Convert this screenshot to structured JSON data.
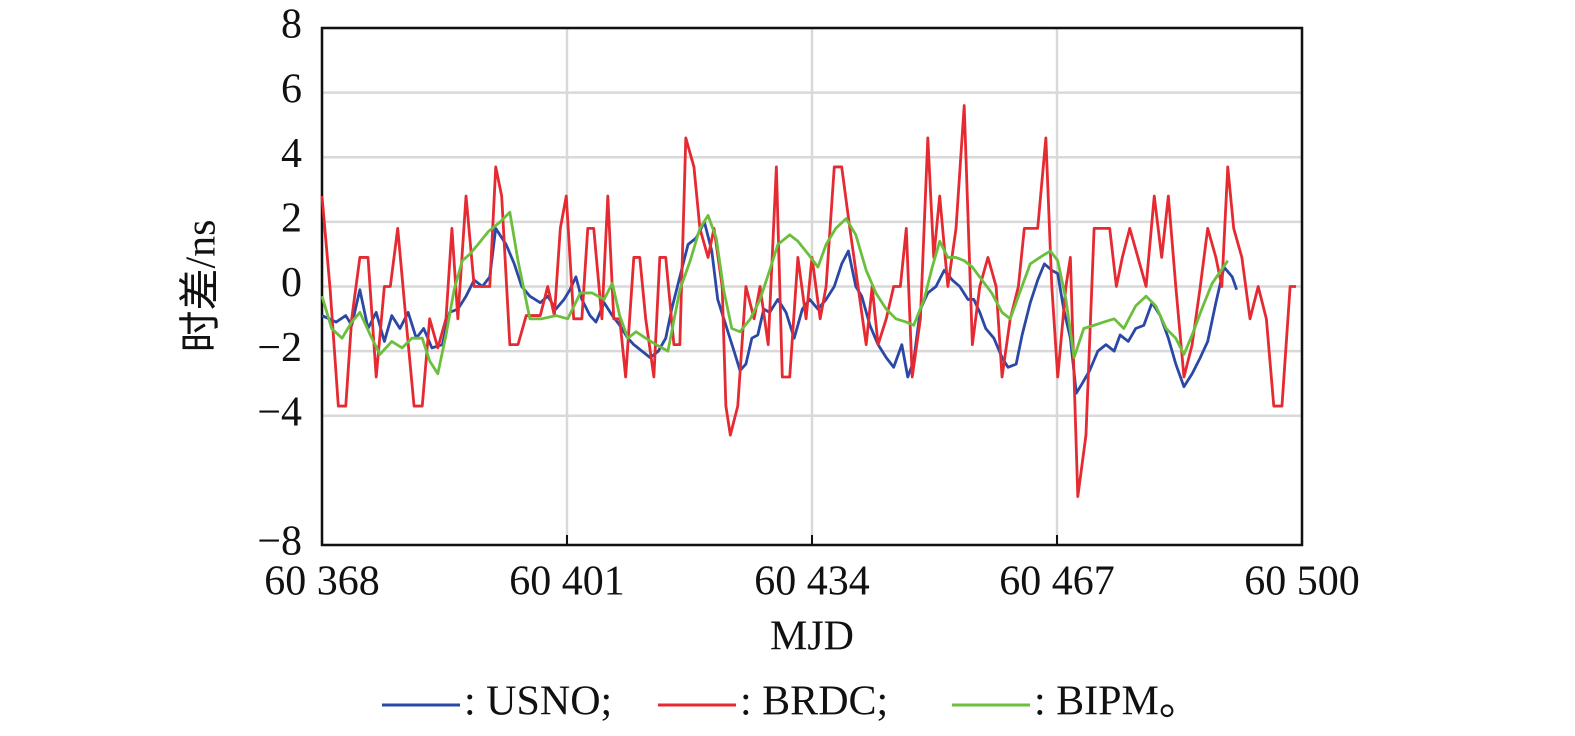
{
  "chart_data": {
    "type": "line",
    "x_label": "MJD",
    "y_label": "时差/ns",
    "xlim": [
      60368,
      60500
    ],
    "ylim": [
      -8,
      8
    ],
    "xticks": [
      {
        "value": 60368,
        "label": "60 368"
      },
      {
        "value": 60401,
        "label": "60 401"
      },
      {
        "value": 60434,
        "label": "60 434"
      },
      {
        "value": 60467,
        "label": "60 467"
      },
      {
        "value": 60500,
        "label": "60 500"
      }
    ],
    "yticks": [
      8,
      6,
      4,
      2,
      0,
      {
        "value": -2,
        "label": "−2"
      },
      {
        "value": -4,
        "label": "−4"
      },
      {
        "value": -8,
        "label": "−8"
      }
    ],
    "grid": true,
    "series": [
      {
        "name": ": USNO;",
        "color": "#2c48a6",
        "x": [
          60368,
          60369.9,
          60371.2,
          60372,
          60373.1,
          60374.2,
          60375.3,
          60376.4,
          60377.4,
          60378.5,
          60379.6,
          60380.7,
          60381.7,
          60382.8,
          60384.2,
          60385.2,
          60386.3,
          60387.4,
          60388.5,
          60389.6,
          60390.6,
          60391.4,
          60392.8,
          60393.9,
          60394.9,
          60396,
          60397.4,
          60398.4,
          60399.5,
          60400.6,
          60401.4,
          60402.2,
          60403,
          60404.1,
          60404.9,
          60406,
          60407.1,
          60408.1,
          60409.2,
          60410,
          60411.1,
          60412.2,
          60413.3,
          60414.3,
          60415.1,
          60416.2,
          60417.3,
          60418.4,
          60419.5,
          60420.5,
          60421.3,
          60422.4,
          60423.5,
          60424.3,
          60425.1,
          60425.9,
          60426.7,
          60427.5,
          60428.3,
          60429.4,
          60430.5,
          60431.6,
          60432.7,
          60433.7,
          60434.8,
          60435.9,
          60437,
          60438,
          60438.9,
          60439.9,
          60440.7,
          60441.8,
          60442.9,
          60444,
          60445,
          60446.1,
          60446.9,
          60447.7,
          60448.6,
          60449.6,
          60450.7,
          60451.8,
          60452.9,
          60453.9,
          60455,
          60455.8,
          60456.6,
          60457.4,
          60458.5,
          60459.6,
          60460.4,
          60461.5,
          60462.3,
          60463.4,
          60464.4,
          60465.3,
          60466.3,
          60467.1,
          60467.9,
          60468.8,
          60469.6,
          60470.4,
          60471.4,
          60472.5,
          60473.6,
          60474.7,
          60475.5,
          60476.6,
          60477.6,
          60478.7,
          60479.8,
          60480.9,
          60482,
          60483,
          60484.1,
          60485.2,
          60486.3,
          60487.3,
          60488.4,
          60489.5,
          60490.6,
          60491.2
        ],
        "values": [
          -0.9,
          -1.1,
          -0.9,
          -1.2,
          -0.1,
          -1.3,
          -0.8,
          -1.7,
          -0.9,
          -1.3,
          -0.8,
          -1.6,
          -1.3,
          -1.9,
          -1.8,
          -0.8,
          -0.7,
          -0.3,
          0.2,
          0.0,
          0.3,
          1.8,
          1.3,
          0.7,
          0.0,
          -0.3,
          -0.5,
          -0.3,
          -0.7,
          -0.4,
          -0.1,
          0.3,
          -0.4,
          -0.9,
          -1.1,
          -0.5,
          -0.9,
          -1.2,
          -1.6,
          -1.8,
          -2.0,
          -2.2,
          -2.0,
          -1.6,
          -0.7,
          0.3,
          1.3,
          1.5,
          2.0,
          1.1,
          -0.4,
          -1.2,
          -2.0,
          -2.6,
          -2.4,
          -1.6,
          -1.5,
          -0.7,
          -0.8,
          -0.4,
          -0.8,
          -1.6,
          -0.7,
          -0.4,
          -0.7,
          -0.4,
          0.0,
          0.7,
          1.1,
          0.0,
          -0.3,
          -1.2,
          -1.8,
          -2.2,
          -2.5,
          -1.8,
          -2.8,
          -2.3,
          -0.7,
          -0.2,
          0.0,
          0.5,
          0.2,
          0.0,
          -0.4,
          -0.4,
          -0.8,
          -1.3,
          -1.6,
          -2.2,
          -2.5,
          -2.4,
          -1.5,
          -0.5,
          0.2,
          0.7,
          0.5,
          0.4,
          -0.7,
          -1.6,
          -3.3,
          -3.0,
          -2.6,
          -2.0,
          -1.8,
          -2.0,
          -1.5,
          -1.7,
          -1.3,
          -1.2,
          -0.5,
          -0.9,
          -1.6,
          -2.4,
          -3.1,
          -2.7,
          -2.2,
          -1.7,
          -0.5,
          0.6,
          0.3,
          -0.1
        ]
      },
      {
        "name": ": BRDC;",
        "color": "#e52a32",
        "x": [
          60368,
          60369.1,
          60370.2,
          60371.2,
          60372,
          60373.1,
          60374.2,
          60375.3,
          60376.4,
          60377.2,
          60378.2,
          60379.3,
          60380.4,
          60381.5,
          60382.5,
          60383.6,
          60384.7,
          60385.5,
          60386.3,
          60387.4,
          60388.5,
          60389.6,
          60390.6,
          60391.4,
          60392.2,
          60393.3,
          60394.4,
          60395.5,
          60396.6,
          60397.4,
          60398.4,
          60399.3,
          60400.1,
          60400.9,
          60401.9,
          60403,
          60403.8,
          60404.6,
          60405.7,
          60406.5,
          60407.3,
          60408.1,
          60408.9,
          60410,
          60410.8,
          60411.6,
          60412.7,
          60413.5,
          60414.3,
          60415.4,
          60416.2,
          60417,
          60418.1,
          60418.9,
          60420,
          60420.8,
          60421.9,
          60422.4,
          60423,
          60424,
          60425.1,
          60426.2,
          60427,
          60428.1,
          60429.2,
          60430,
          60431,
          60432.1,
          60433.2,
          60434,
          60435.1,
          60435.9,
          60437,
          60438,
          60439.1,
          60440.2,
          60441.3,
          60442.1,
          60442.9,
          60444,
          60445,
          60445.9,
          60446.7,
          60447.5,
          60448.6,
          60449.6,
          60450.4,
          60451.2,
          60452.3,
          60453.4,
          60454.5,
          60455.6,
          60456.6,
          60457.7,
          60458.8,
          60459.6,
          60460.7,
          60461.8,
          60462.6,
          60463.4,
          60464.4,
          60465.5,
          60466.3,
          60467.1,
          60468.2,
          60468.8,
          60469.8,
          60470.9,
          60472,
          60473.1,
          60474.1,
          60475,
          60475.8,
          60476.8,
          60477.9,
          60479,
          60480.1,
          60481.1,
          60482,
          60483,
          60484.1,
          60485.2,
          60486.3,
          60487.3,
          60488.4,
          60489.2,
          60490,
          60490.8,
          60491.9,
          60493,
          60494.1,
          60495.2,
          60496.2,
          60497.3,
          60498.4,
          60499.2
        ],
        "values": [
          2.8,
          -0.1,
          -3.7,
          -3.7,
          -1.0,
          0.9,
          0.9,
          -2.8,
          0,
          0,
          1.8,
          -1.0,
          -3.7,
          -3.7,
          -1.0,
          -1.9,
          -1.0,
          1.8,
          -1.0,
          2.8,
          0,
          0,
          0,
          3.7,
          2.8,
          -1.8,
          -1.8,
          -0.9,
          -0.9,
          -0.9,
          0,
          -0.9,
          1.8,
          2.8,
          -1.0,
          -1.0,
          1.8,
          1.8,
          -1.0,
          2.8,
          -1.0,
          -1.0,
          -2.8,
          0.9,
          0.9,
          -1.0,
          -2.8,
          0.9,
          0.9,
          -1.8,
          -1.8,
          4.6,
          3.7,
          1.8,
          0.9,
          1.8,
          0,
          -3.7,
          -4.6,
          -3.7,
          0,
          -1.0,
          0,
          -1.8,
          3.7,
          -2.8,
          -2.8,
          0.9,
          -1.0,
          0.9,
          -1.0,
          0,
          3.7,
          3.7,
          1.8,
          0,
          -1.8,
          0,
          -1.8,
          -1.0,
          0,
          0,
          1.8,
          -2.8,
          -1.0,
          4.6,
          0.9,
          2.8,
          0,
          1.8,
          5.6,
          -1.8,
          0,
          0.9,
          0,
          -2.8,
          -1.0,
          0,
          1.8,
          1.8,
          1.8,
          4.6,
          0,
          -2.8,
          0,
          0.9,
          -6.5,
          -4.6,
          1.8,
          1.8,
          1.8,
          0,
          0.9,
          1.8,
          0.9,
          0,
          2.8,
          0.9,
          2.8,
          0,
          -2.8,
          -1.8,
          0,
          1.8,
          0.9,
          0,
          3.7,
          1.8,
          0.9,
          -1.0,
          0,
          -1.0,
          -3.7,
          -3.7,
          0,
          0
        ]
      },
      {
        "name": ": BIPM。",
        "color": "#6cbf3c",
        "x": [
          60368,
          60369.3,
          60370.7,
          60372,
          60373.1,
          60374.5,
          60375.8,
          60377.4,
          60378.8,
          60380.1,
          60381.5,
          60382.5,
          60383.6,
          60384.7,
          60385.8,
          60386.9,
          60387.9,
          60389,
          60390.4,
          60392,
          60393.3,
          60394.4,
          60396,
          60397.6,
          60399.5,
          60401.1,
          60402.8,
          60404.4,
          60406,
          60407.1,
          60408.1,
          60409.2,
          60410.3,
          60411.6,
          60413,
          60414.6,
          60416.2,
          60417.6,
          60418.9,
          60420,
          60421.1,
          60422.1,
          60423.2,
          60424.3,
          60425.7,
          60427,
          60428.3,
          60429.4,
          60431,
          60432.1,
          60433.5,
          60434.8,
          60435.9,
          60437.2,
          60438.6,
          60439.9,
          60441.3,
          60442.6,
          60444,
          60445.3,
          60446.7,
          60447.7,
          60449.1,
          60450.2,
          60451.2,
          60452.3,
          60453.4,
          60454.5,
          60455.6,
          60456.9,
          60458.2,
          60459.6,
          60460.7,
          60461.8,
          60463.4,
          60464.7,
          60466.1,
          60467.1,
          60468.2,
          60469.3,
          60470.6,
          60472,
          60473.3,
          60474.7,
          60476,
          60477.6,
          60479,
          60480.3,
          60481.7,
          60483,
          60484.1,
          60485.2,
          60486.5,
          60487.9,
          60490
        ],
        "values": [
          -0.3,
          -1.3,
          -1.6,
          -1.1,
          -0.8,
          -1.5,
          -2.1,
          -1.7,
          -1.9,
          -1.6,
          -1.6,
          -2.3,
          -2.7,
          -1.5,
          -0.1,
          0.8,
          1.0,
          1.3,
          1.7,
          2.0,
          2.3,
          0.8,
          -1.0,
          -1.0,
          -0.9,
          -1.0,
          -0.2,
          -0.2,
          -0.4,
          0.1,
          -0.9,
          -1.6,
          -1.4,
          -1.6,
          -1.8,
          -2.0,
          -0.1,
          0.8,
          1.8,
          2.2,
          1.5,
          -0.1,
          -1.3,
          -1.4,
          -1.0,
          -0.4,
          0.5,
          1.3,
          1.6,
          1.4,
          1.0,
          0.6,
          1.3,
          1.8,
          2.1,
          1.6,
          0.5,
          -0.2,
          -0.7,
          -1.0,
          -1.1,
          -1.2,
          -0.4,
          0.6,
          1.4,
          0.9,
          0.9,
          0.8,
          0.6,
          0.2,
          -0.2,
          -0.8,
          -1.0,
          -0.3,
          0.7,
          0.9,
          1.1,
          0.8,
          -0.4,
          -2.2,
          -1.3,
          -1.2,
          -1.1,
          -1.0,
          -1.3,
          -0.6,
          -0.3,
          -0.6,
          -1.3,
          -1.6,
          -2.1,
          -1.5,
          -0.7,
          0.1,
          0.8
        ]
      }
    ]
  }
}
